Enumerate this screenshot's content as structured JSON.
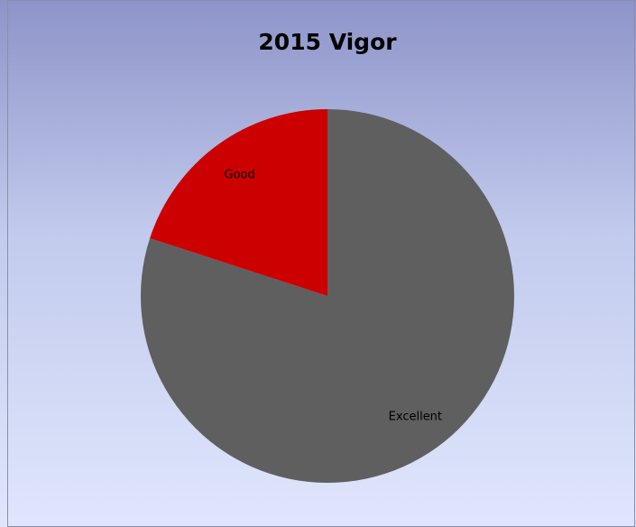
{
  "chart_data": {
    "type": "pie",
    "title": "2015 Vigor",
    "categories": [
      "Excellent",
      "Good"
    ],
    "values": [
      80,
      20
    ],
    "colors": [
      "#5f5f5f",
      "#cc0000"
    ]
  }
}
